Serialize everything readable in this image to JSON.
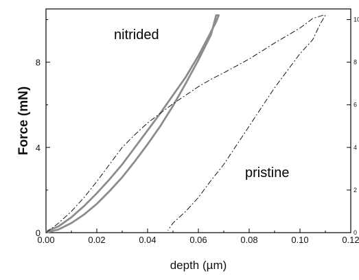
{
  "chart_data": {
    "type": "line",
    "title": "",
    "xlabel": "depth (µm)",
    "ylabel": "Force (mN)",
    "xlim": [
      0,
      0.12
    ],
    "ylim": [
      0,
      10.5
    ],
    "x_ticks": [
      "0.00",
      "0.02",
      "0.04",
      "0.06",
      "0.08",
      "0.10",
      "0.12"
    ],
    "y_ticks_left": [
      "0",
      "4",
      "8"
    ],
    "y_ticks_right": [
      "0",
      "2",
      "4",
      "6",
      "8",
      "10"
    ],
    "grid": false,
    "legend": "none",
    "annotations": [
      "nitrided",
      "pristine"
    ],
    "series": [
      {
        "style": "solid",
        "color": "#8c8c8c",
        "label": "nitrided",
        "points": [
          [
            0,
            0
          ],
          [
            0.005,
            0.15
          ],
          [
            0.01,
            0.45
          ],
          [
            0.015,
            0.85
          ],
          [
            0.02,
            1.35
          ],
          [
            0.025,
            1.95
          ],
          [
            0.03,
            2.6
          ],
          [
            0.035,
            3.35
          ],
          [
            0.04,
            4.15
          ],
          [
            0.045,
            5.0
          ],
          [
            0.05,
            5.95
          ],
          [
            0.055,
            7.0
          ],
          [
            0.06,
            8.1
          ],
          [
            0.065,
            9.3
          ],
          [
            0.067,
            10.2
          ],
          [
            0.068,
            10.2
          ],
          [
            0.067,
            9.9
          ],
          [
            0.064,
            9.2
          ],
          [
            0.06,
            8.3
          ],
          [
            0.055,
            7.3
          ],
          [
            0.05,
            6.45
          ],
          [
            0.045,
            5.6
          ],
          [
            0.04,
            4.8
          ],
          [
            0.035,
            4.0
          ],
          [
            0.03,
            3.2
          ],
          [
            0.025,
            2.5
          ],
          [
            0.02,
            1.85
          ],
          [
            0.015,
            1.25
          ],
          [
            0.01,
            0.72
          ],
          [
            0.005,
            0.3
          ],
          [
            0.0,
            0.05
          ]
        ]
      },
      {
        "style": "dash-dot",
        "color": "#111111",
        "label": "pristine",
        "points": [
          [
            0,
            0
          ],
          [
            0.005,
            0.45
          ],
          [
            0.01,
            1.0
          ],
          [
            0.015,
            1.65
          ],
          [
            0.02,
            2.4
          ],
          [
            0.025,
            3.2
          ],
          [
            0.03,
            4.0
          ],
          [
            0.035,
            4.6
          ],
          [
            0.04,
            5.15
          ],
          [
            0.045,
            5.6
          ],
          [
            0.05,
            6.05
          ],
          [
            0.055,
            6.45
          ],
          [
            0.06,
            6.85
          ],
          [
            0.065,
            7.2
          ],
          [
            0.07,
            7.5
          ],
          [
            0.08,
            8.15
          ],
          [
            0.09,
            8.9
          ],
          [
            0.1,
            9.6
          ],
          [
            0.105,
            10.05
          ],
          [
            0.109,
            10.2
          ],
          [
            0.11,
            10.2
          ],
          [
            0.108,
            9.8
          ],
          [
            0.105,
            9.05
          ],
          [
            0.1,
            8.4
          ],
          [
            0.095,
            7.6
          ],
          [
            0.09,
            6.8
          ],
          [
            0.085,
            5.9
          ],
          [
            0.08,
            5.0
          ],
          [
            0.075,
            4.1
          ],
          [
            0.07,
            3.2
          ],
          [
            0.065,
            2.45
          ],
          [
            0.06,
            1.65
          ],
          [
            0.055,
            1.0
          ],
          [
            0.05,
            0.45
          ],
          [
            0.048,
            0.1
          ]
        ]
      }
    ]
  }
}
